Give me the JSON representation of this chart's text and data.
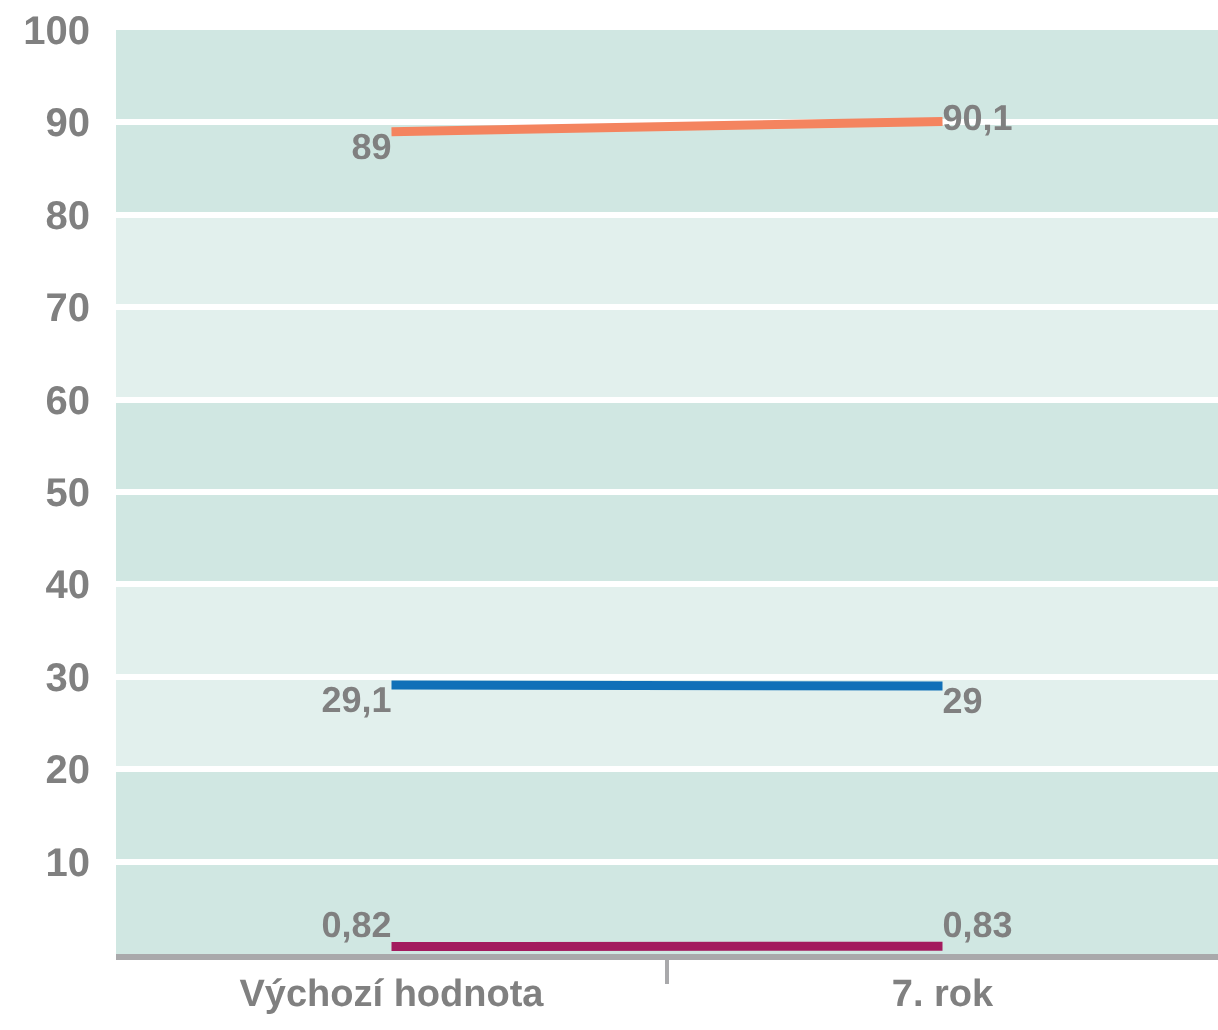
{
  "chart_data": {
    "type": "line",
    "categories": [
      "Výchozí hodnota",
      "7. rok"
    ],
    "series": [
      {
        "color": "#f4845f",
        "values": [
          89,
          90.1
        ],
        "value_labels": [
          "89",
          "90,1"
        ]
      },
      {
        "color": "#1070b8",
        "values": [
          29.1,
          29
        ],
        "value_labels": [
          "29,1",
          "29"
        ]
      },
      {
        "color": "#a31b5e",
        "values": [
          0.82,
          0.83
        ],
        "value_labels": [
          "0,82",
          "0,83"
        ]
      }
    ],
    "ylim": [
      0,
      100
    ],
    "yticks": [
      10,
      20,
      30,
      40,
      50,
      60,
      70,
      80,
      90,
      100
    ],
    "grid": "y",
    "marker": "none",
    "line_style": "solid",
    "bands": [
      {
        "axis": "y",
        "from": 80,
        "to": 100,
        "color": "#d0e7e2"
      },
      {
        "axis": "y",
        "from": 60,
        "to": 80,
        "color": "#e2f0ed"
      },
      {
        "axis": "y",
        "from": 40,
        "to": 60,
        "color": "#d0e7e2"
      },
      {
        "axis": "y",
        "from": 20,
        "to": 40,
        "color": "#e2f0ed"
      },
      {
        "axis": "y",
        "from": 0,
        "to": 20,
        "color": "#d0e7e2"
      }
    ]
  }
}
